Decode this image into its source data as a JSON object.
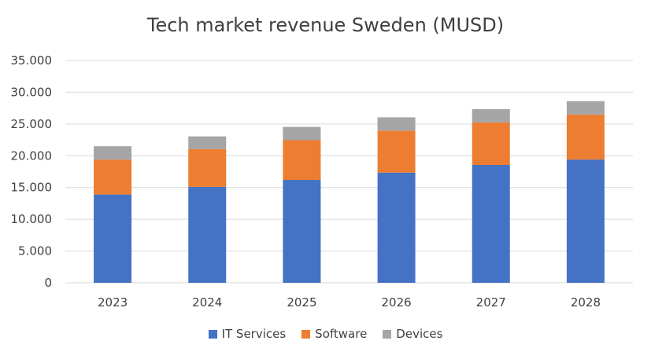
{
  "chart_data": {
    "type": "bar",
    "stacked": true,
    "title": "Tech market revenue Sweden (MUSD)",
    "xlabel": "",
    "ylabel": "",
    "categories": [
      "2023",
      "2024",
      "2025",
      "2026",
      "2027",
      "2028"
    ],
    "series": [
      {
        "name": "IT Services",
        "color": "#4472C4",
        "values": [
          13900,
          15100,
          16200,
          17350,
          18550,
          19400
        ]
      },
      {
        "name": "Software",
        "color": "#ED7D31",
        "values": [
          5500,
          5950,
          6250,
          6600,
          6700,
          7100
        ]
      },
      {
        "name": "Devices",
        "color": "#A5A5A5",
        "values": [
          2100,
          2000,
          2100,
          2100,
          2100,
          2100
        ]
      }
    ],
    "ylim": [
      0,
      35000
    ],
    "yticks": [
      0,
      5000,
      10000,
      15000,
      20000,
      25000,
      30000,
      35000
    ],
    "ytick_labels": [
      "0",
      "5.000",
      "10.000",
      "15.000",
      "20.000",
      "25.000",
      "30.000",
      "35.000"
    ],
    "grid": true,
    "legend_position": "bottom"
  }
}
